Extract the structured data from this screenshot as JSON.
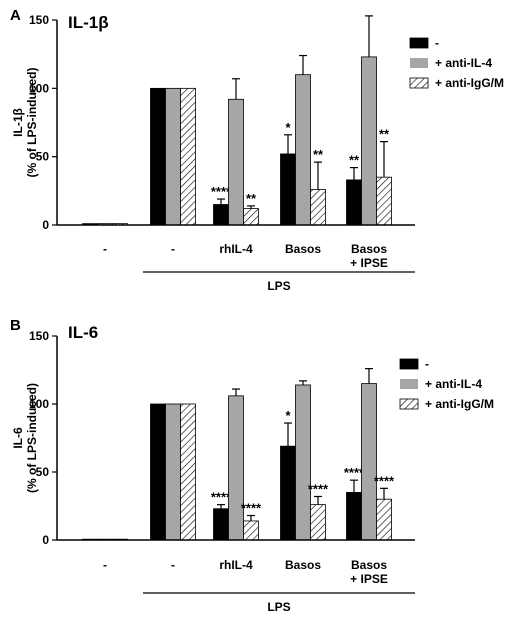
{
  "chart_data": [
    {
      "type": "bar",
      "panel_label": "A",
      "title": "IL-1β",
      "ylabel": "IL-1β",
      "ylabel_unit": "(% of LPS-induced)",
      "ylim": [
        0,
        150
      ],
      "yticks": [
        0,
        50,
        100,
        150
      ],
      "categories": [
        "-",
        "-",
        "rhIL-4",
        "Basos",
        "Basos|+ IPSE"
      ],
      "group_label": "LPS",
      "grid": false,
      "legend_position": "top-right",
      "series": [
        {
          "name": "-",
          "values": [
            1,
            100,
            15,
            52,
            33
          ],
          "errors": [
            0,
            0,
            4,
            14,
            9
          ],
          "annotations": [
            "",
            "",
            "****",
            "*",
            "**"
          ]
        },
        {
          "name": "+ anti-IL-4",
          "values": [
            1,
            100,
            92,
            110,
            123
          ],
          "errors": [
            0,
            0,
            15,
            14,
            30
          ],
          "annotations": [
            "",
            "",
            "",
            "",
            ""
          ]
        },
        {
          "name": "+ anti-IgG/M",
          "values": [
            1,
            100,
            12,
            26,
            35
          ],
          "errors": [
            0,
            0,
            2,
            20,
            26
          ],
          "annotations": [
            "",
            "",
            "**",
            "**",
            "**"
          ]
        }
      ]
    },
    {
      "type": "bar",
      "panel_label": "B",
      "title": "IL-6",
      "ylabel": "IL-6",
      "ylabel_unit": "(% of LPS-induced)",
      "ylim": [
        0,
        150
      ],
      "yticks": [
        0,
        50,
        100,
        150
      ],
      "categories": [
        "-",
        "-",
        "rhIL-4",
        "Basos",
        "Basos|+ IPSE"
      ],
      "group_label": "LPS",
      "grid": false,
      "legend_position": "top-right",
      "series": [
        {
          "name": "-",
          "values": [
            0,
            100,
            23,
            69,
            35
          ],
          "errors": [
            0,
            0,
            3,
            17,
            9
          ],
          "annotations": [
            "",
            "",
            "****",
            "*",
            "****"
          ]
        },
        {
          "name": "+ anti-IL-4",
          "values": [
            0,
            100,
            106,
            114,
            115
          ],
          "errors": [
            0,
            0,
            5,
            3,
            11
          ],
          "annotations": [
            "",
            "",
            "",
            "",
            ""
          ]
        },
        {
          "name": "+ anti-IgG/M",
          "values": [
            0,
            100,
            14,
            26,
            30
          ],
          "errors": [
            0,
            0,
            4,
            6,
            8
          ],
          "annotations": [
            "",
            "",
            "****",
            "****",
            "****"
          ]
        }
      ]
    }
  ],
  "colors": {
    "series": [
      "#000000",
      "#a6a6a6",
      "#ffffff"
    ],
    "axis": "#000000"
  }
}
